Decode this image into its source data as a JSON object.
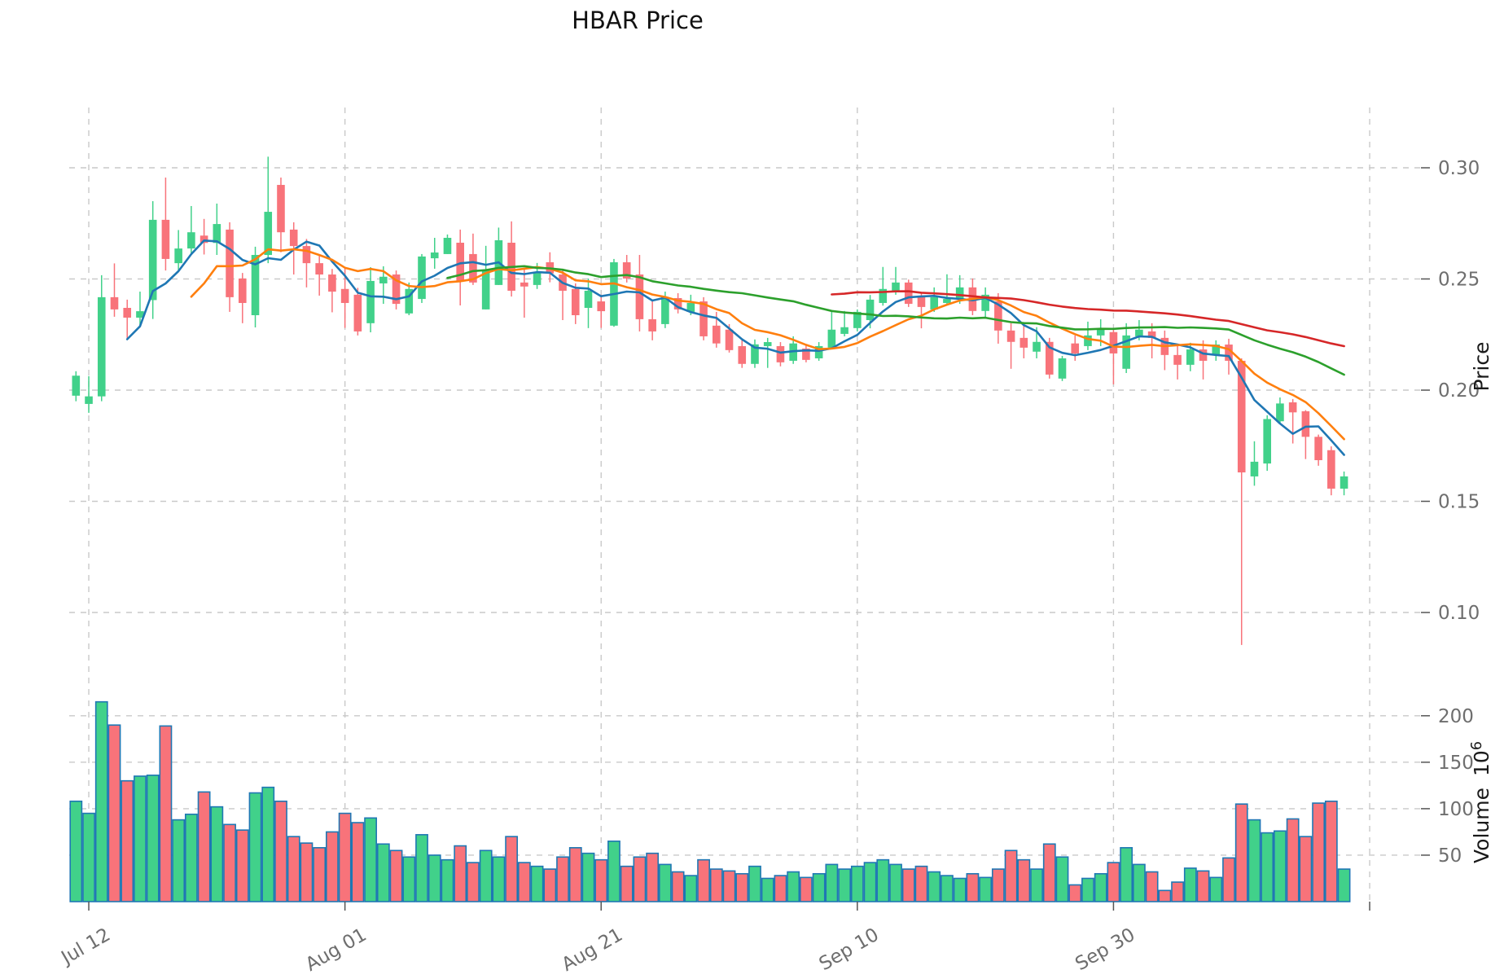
{
  "title": "HBAR Price",
  "price_axis": {
    "label": "Price",
    "ticks": [
      {
        "label": "0.30",
        "value": 0.3
      },
      {
        "label": "0.25",
        "value": 0.25
      },
      {
        "label": "0.20",
        "value": 0.2
      },
      {
        "label": "0.15",
        "value": 0.15
      },
      {
        "label": "0.10",
        "value": 0.1
      }
    ]
  },
  "volume_axis": {
    "label": "Volume",
    "scale_label": "10",
    "scale_exponent": "6",
    "ticks": [
      {
        "label": "200",
        "value": 200
      },
      {
        "label": "150",
        "value": 150
      },
      {
        "label": "100",
        "value": 100
      },
      {
        "label": "50",
        "value": 50
      }
    ]
  },
  "x_axis": {
    "tick_labels": [
      "Jul 12",
      "Aug 01",
      "Aug 21",
      "Sep 10",
      "Sep 30"
    ],
    "tick_indices": [
      1,
      21,
      41,
      61,
      81
    ],
    "unlabeled_tick_index": 101
  },
  "chart_data": {
    "type": "candlestick",
    "subpanel": "volume",
    "price_ylim": [
      0.075,
      0.327
    ],
    "volume_unit": "millions",
    "grid": "dashed",
    "colors": {
      "up": "#41d18a",
      "down": "#f8737a",
      "volume_edge": "#1f77b4",
      "grid": "#c9c9c9",
      "tick": "#555555"
    },
    "moving_averages": [
      {
        "period": 5,
        "color": "#1f77b4"
      },
      {
        "period": 10,
        "color": "#ff7f0e"
      },
      {
        "period": 30,
        "color": "#2ca02c"
      },
      {
        "period": 60,
        "color": "#d62728"
      }
    ],
    "candles_format": [
      "open",
      "high",
      "low",
      "close",
      "volume_millions"
    ],
    "candles": [
      [
        0.1975,
        0.2085,
        0.195,
        0.2065,
        108
      ],
      [
        0.1938,
        0.2063,
        0.1898,
        0.1972,
        95
      ],
      [
        0.1972,
        0.2517,
        0.195,
        0.2418,
        215
      ],
      [
        0.2418,
        0.257,
        0.233,
        0.2363,
        190
      ],
      [
        0.237,
        0.2407,
        0.2234,
        0.2326,
        130
      ],
      [
        0.2326,
        0.2443,
        0.229,
        0.2355,
        135
      ],
      [
        0.2405,
        0.285,
        0.232,
        0.2766,
        136
      ],
      [
        0.2766,
        0.2956,
        0.2538,
        0.259,
        189
      ],
      [
        0.2571,
        0.272,
        0.254,
        0.2637,
        88
      ],
      [
        0.2637,
        0.2828,
        0.2608,
        0.271,
        94
      ],
      [
        0.2695,
        0.277,
        0.261,
        0.2662,
        118
      ],
      [
        0.2662,
        0.2839,
        0.2608,
        0.2747,
        102
      ],
      [
        0.2722,
        0.2755,
        0.2352,
        0.2418,
        83
      ],
      [
        0.2502,
        0.2527,
        0.2301,
        0.2392,
        77
      ],
      [
        0.2337,
        0.2645,
        0.2282,
        0.2608,
        117
      ],
      [
        0.2608,
        0.305,
        0.2571,
        0.2802,
        123
      ],
      [
        0.2923,
        0.2956,
        0.262,
        0.271,
        108
      ],
      [
        0.2722,
        0.2755,
        0.252,
        0.2648,
        70
      ],
      [
        0.2648,
        0.268,
        0.2462,
        0.2571,
        63
      ],
      [
        0.2571,
        0.261,
        0.2425,
        0.252,
        58
      ],
      [
        0.252,
        0.2545,
        0.235,
        0.2443,
        75
      ],
      [
        0.2455,
        0.2554,
        0.228,
        0.2392,
        95
      ],
      [
        0.2429,
        0.246,
        0.2246,
        0.2264,
        85
      ],
      [
        0.2301,
        0.2553,
        0.226,
        0.2491,
        90
      ],
      [
        0.248,
        0.2557,
        0.2388,
        0.251,
        62
      ],
      [
        0.252,
        0.2538,
        0.2363,
        0.2388,
        55
      ],
      [
        0.2345,
        0.2484,
        0.2337,
        0.2455,
        48
      ],
      [
        0.241,
        0.2612,
        0.2392,
        0.2601,
        72
      ],
      [
        0.2593,
        0.2685,
        0.2546,
        0.2619,
        50
      ],
      [
        0.2612,
        0.27,
        0.2612,
        0.2685,
        45
      ],
      [
        0.2663,
        0.2722,
        0.2381,
        0.2491,
        60
      ],
      [
        0.2612,
        0.2704,
        0.2473,
        0.2484,
        42
      ],
      [
        0.2363,
        0.2649,
        0.2363,
        0.2539,
        55
      ],
      [
        0.2473,
        0.2731,
        0.2473,
        0.2674,
        48
      ],
      [
        0.2663,
        0.2759,
        0.2421,
        0.2447,
        70
      ],
      [
        0.2484,
        0.2546,
        0.2326,
        0.2466,
        42
      ],
      [
        0.2473,
        0.2572,
        0.2455,
        0.2528,
        38
      ],
      [
        0.2575,
        0.262,
        0.2485,
        0.2525,
        35
      ],
      [
        0.252,
        0.2546,
        0.2315,
        0.2447,
        48
      ],
      [
        0.2455,
        0.248,
        0.2297,
        0.2337,
        58
      ],
      [
        0.237,
        0.2502,
        0.2279,
        0.2447,
        52
      ],
      [
        0.2399,
        0.2429,
        0.228,
        0.2355,
        45
      ],
      [
        0.229,
        0.259,
        0.2285,
        0.2575,
        65
      ],
      [
        0.2575,
        0.2608,
        0.2484,
        0.2502,
        38
      ],
      [
        0.252,
        0.2608,
        0.2264,
        0.2319,
        48
      ],
      [
        0.2319,
        0.2399,
        0.2224,
        0.2264,
        52
      ],
      [
        0.2297,
        0.2443,
        0.2279,
        0.2418,
        40
      ],
      [
        0.2414,
        0.2436,
        0.2345,
        0.2363,
        32
      ],
      [
        0.2352,
        0.2429,
        0.2337,
        0.2392,
        28
      ],
      [
        0.2399,
        0.2418,
        0.2224,
        0.2242,
        45
      ],
      [
        0.229,
        0.2352,
        0.2191,
        0.221,
        35
      ],
      [
        0.2272,
        0.2297,
        0.2169,
        0.218,
        33
      ],
      [
        0.2198,
        0.2224,
        0.21,
        0.2118,
        30
      ],
      [
        0.2118,
        0.2228,
        0.21,
        0.2206,
        38
      ],
      [
        0.2198,
        0.2235,
        0.21,
        0.2216,
        25
      ],
      [
        0.2198,
        0.2216,
        0.2107,
        0.2125,
        28
      ],
      [
        0.2132,
        0.2242,
        0.2118,
        0.221,
        32
      ],
      [
        0.2187,
        0.2205,
        0.2125,
        0.2136,
        26
      ],
      [
        0.2143,
        0.2216,
        0.2132,
        0.2198,
        30
      ],
      [
        0.2191,
        0.2352,
        0.2187,
        0.2272,
        40
      ],
      [
        0.2253,
        0.2356,
        0.2242,
        0.2283,
        35
      ],
      [
        0.2279,
        0.2363,
        0.2264,
        0.2352,
        38
      ],
      [
        0.2315,
        0.2428,
        0.2278,
        0.2407,
        42
      ],
      [
        0.2392,
        0.2554,
        0.238,
        0.2455,
        45
      ],
      [
        0.2443,
        0.2554,
        0.2429,
        0.2484,
        40
      ],
      [
        0.2484,
        0.2497,
        0.2374,
        0.2388,
        35
      ],
      [
        0.2425,
        0.2436,
        0.2278,
        0.2374,
        38
      ],
      [
        0.2363,
        0.2462,
        0.2352,
        0.2418,
        32
      ],
      [
        0.2392,
        0.2521,
        0.2381,
        0.241,
        28
      ],
      [
        0.2407,
        0.2517,
        0.2388,
        0.2462,
        25
      ],
      [
        0.2462,
        0.2502,
        0.2337,
        0.2356,
        30
      ],
      [
        0.2356,
        0.2462,
        0.2326,
        0.2429,
        26
      ],
      [
        0.2399,
        0.2436,
        0.2209,
        0.2268,
        35
      ],
      [
        0.2268,
        0.2301,
        0.2096,
        0.2217,
        55
      ],
      [
        0.2235,
        0.23,
        0.2143,
        0.2191,
        45
      ],
      [
        0.2173,
        0.2283,
        0.2143,
        0.2217,
        35
      ],
      [
        0.2217,
        0.2235,
        0.2052,
        0.207,
        62
      ],
      [
        0.2052,
        0.2154,
        0.2041,
        0.2143,
        48
      ],
      [
        0.221,
        0.2246,
        0.2132,
        0.2165,
        18
      ],
      [
        0.2198,
        0.2308,
        0.218,
        0.2246,
        25
      ],
      [
        0.2246,
        0.2319,
        0.2198,
        0.2279,
        30
      ],
      [
        0.2261,
        0.2275,
        0.2026,
        0.2165,
        42
      ],
      [
        0.2096,
        0.2301,
        0.2077,
        0.2246,
        58
      ],
      [
        0.2242,
        0.2315,
        0.2224,
        0.2272,
        40
      ],
      [
        0.2264,
        0.2301,
        0.2143,
        0.2235,
        32
      ],
      [
        0.2235,
        0.2268,
        0.209,
        0.2158,
        12
      ],
      [
        0.2158,
        0.2198,
        0.2048,
        0.2114,
        21
      ],
      [
        0.2114,
        0.2213,
        0.2085,
        0.2183,
        36
      ],
      [
        0.2183,
        0.2224,
        0.2048,
        0.2132,
        33
      ],
      [
        0.2161,
        0.2224,
        0.2132,
        0.2205,
        26
      ],
      [
        0.2205,
        0.2231,
        0.207,
        0.2132,
        47
      ],
      [
        0.2132,
        0.2143,
        0.0854,
        0.163,
        105
      ],
      [
        0.1612,
        0.177,
        0.157,
        0.1678,
        88
      ],
      [
        0.167,
        0.1887,
        0.1637,
        0.187,
        74
      ],
      [
        0.186,
        0.1967,
        0.185,
        0.194,
        76
      ],
      [
        0.1945,
        0.196,
        0.176,
        0.19,
        89
      ],
      [
        0.1905,
        0.191,
        0.169,
        0.179,
        70
      ],
      [
        0.179,
        0.18,
        0.166,
        0.1685,
        106
      ],
      [
        0.173,
        0.1747,
        0.1527,
        0.1557,
        108
      ],
      [
        0.1557,
        0.1634,
        0.1527,
        0.1612,
        35
      ]
    ]
  }
}
